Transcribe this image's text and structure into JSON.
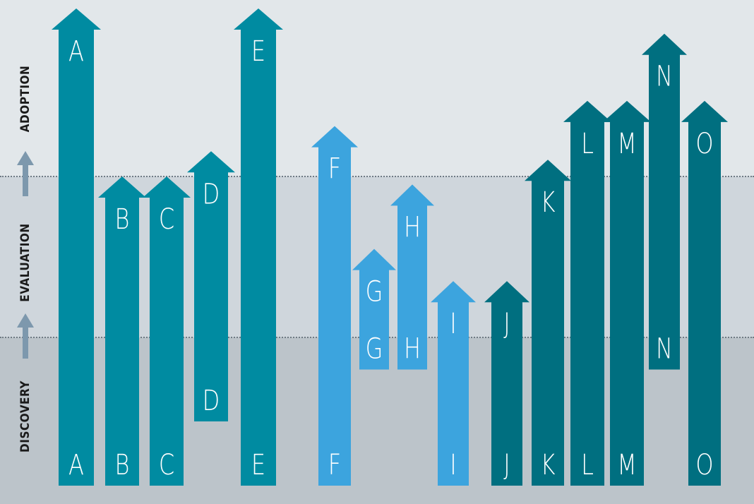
{
  "stage_labels": {
    "adoption": "ADOPTION",
    "evaluation": "EVALUATION",
    "discovery": "DISCOVERY"
  },
  "colors": {
    "group1": "#008ba1",
    "group2": "#3ca4de",
    "group3": "#006f80",
    "stage_arrow": "#7d98ad"
  },
  "arrows": [
    {
      "id": "a",
      "label": "A",
      "start": 0,
      "end": 3.0,
      "group": 1,
      "start_label": true,
      "end_label": true
    },
    {
      "id": "b",
      "label": "B",
      "start": 0,
      "end": 2.0,
      "group": 1,
      "start_label": true,
      "end_label": true
    },
    {
      "id": "c",
      "label": "C",
      "start": 0,
      "end": 2.0,
      "group": 1,
      "start_label": true,
      "end_label": true
    },
    {
      "id": "d",
      "label": "D",
      "start": 0.5,
      "end": 2.15,
      "group": 1,
      "start_label": true,
      "end_label": true
    },
    {
      "id": "e",
      "label": "E",
      "start": 0,
      "end": 3.0,
      "group": 1,
      "start_label": true,
      "end_label": true
    },
    {
      "id": "f",
      "label": "F",
      "start": 0,
      "end": 2.3,
      "group": 2,
      "start_label": true,
      "end_label": true
    },
    {
      "id": "g",
      "label": "G",
      "start": 0.85,
      "end": 1.55,
      "group": 2,
      "start_label": true,
      "end_label": true
    },
    {
      "id": "h",
      "label": "H",
      "start": 0.85,
      "end": 1.95,
      "group": 2,
      "start_label": true,
      "end_label": true
    },
    {
      "id": "i",
      "label": "I",
      "start": 0,
      "end": 1.35,
      "group": 2,
      "start_label": true,
      "end_label": true
    },
    {
      "id": "j",
      "label": "J",
      "start": 0,
      "end": 1.35,
      "group": 3,
      "start_label": true,
      "end_label": true
    },
    {
      "id": "k",
      "label": "K",
      "start": 0,
      "end": 2.1,
      "group": 3,
      "start_label": true,
      "end_label": true
    },
    {
      "id": "l",
      "label": "L",
      "start": 0,
      "end": 2.45,
      "group": 3,
      "start_label": true,
      "end_label": true
    },
    {
      "id": "m",
      "label": "M",
      "start": 0,
      "end": 2.45,
      "group": 3,
      "start_label": true,
      "end_label": true
    },
    {
      "id": "n",
      "label": "N",
      "start": 0.85,
      "end": 2.85,
      "group": 3,
      "start_label": true,
      "end_label": true
    },
    {
      "id": "o",
      "label": "O",
      "start": 0,
      "end": 2.45,
      "group": 3,
      "start_label": true,
      "end_label": true
    }
  ]
}
